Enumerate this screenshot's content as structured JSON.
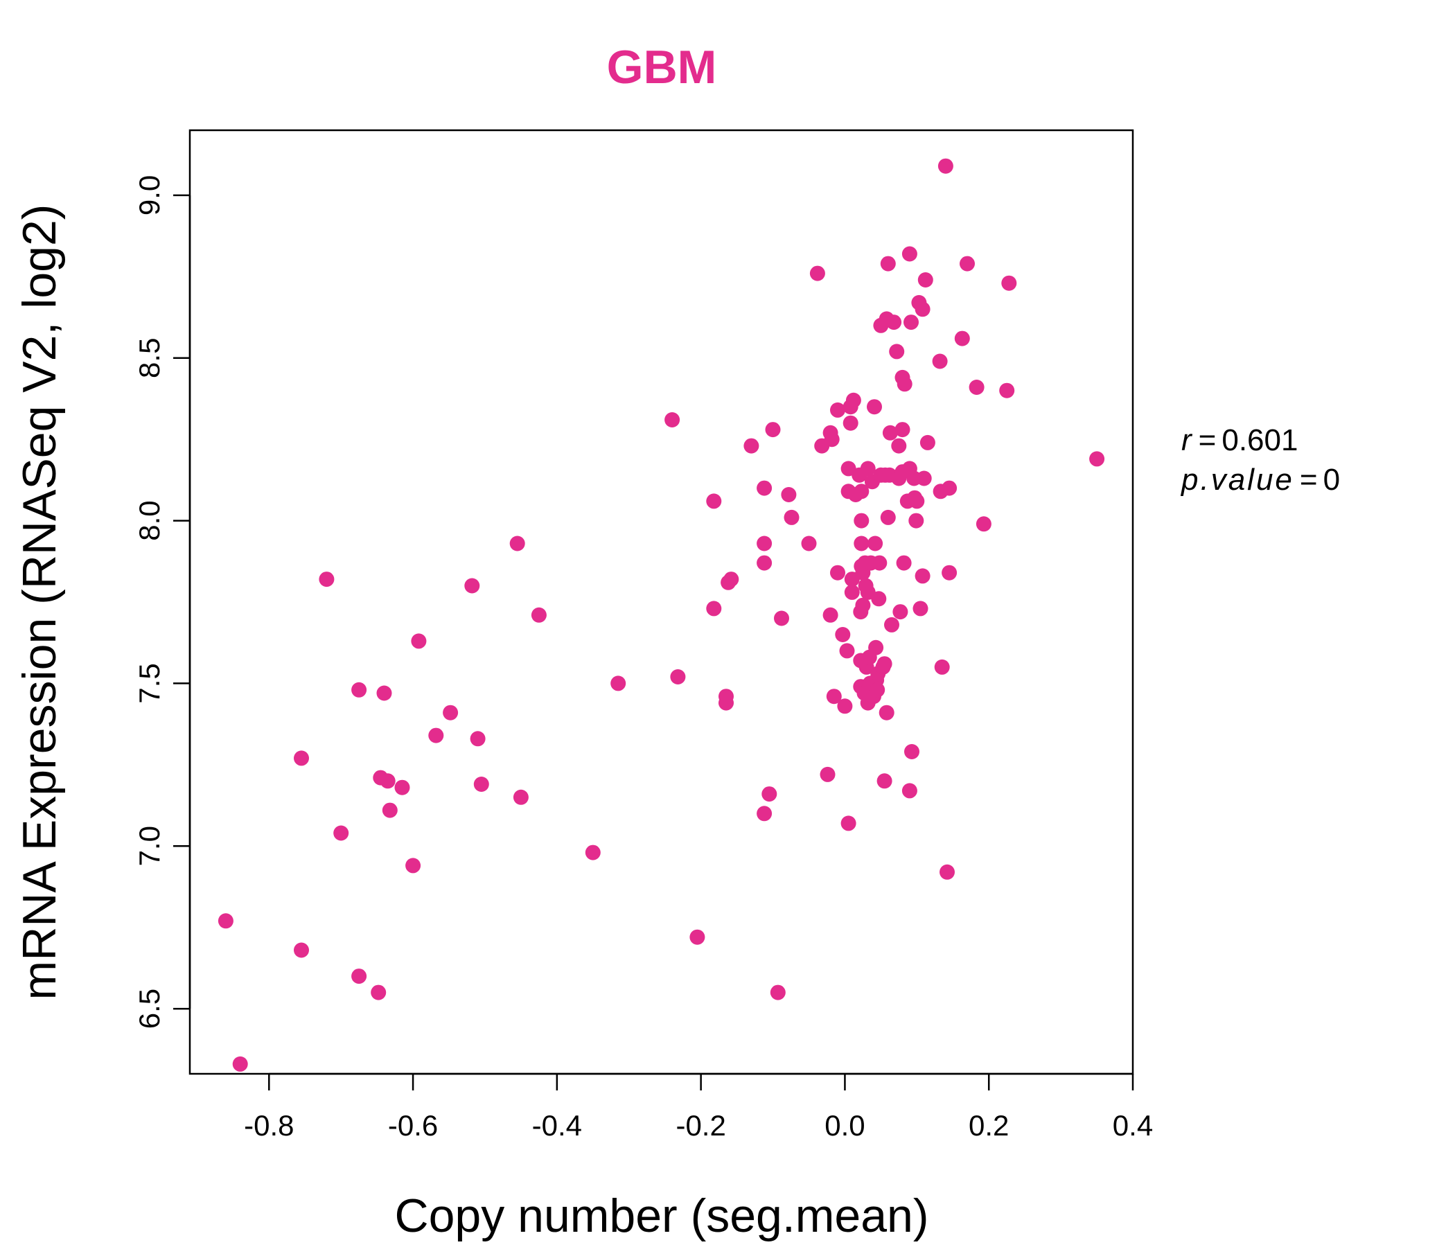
{
  "chart_data": {
    "type": "scatter",
    "title": "GBM",
    "xlabel": "Copy number (seg.mean)",
    "ylabel": "mRNA Expression (RNASeq V2, log2)",
    "xlim": [
      -0.91,
      0.4
    ],
    "ylim": [
      6.3,
      9.2
    ],
    "x_ticks": [
      -0.8,
      -0.6,
      -0.4,
      -0.2,
      0.0,
      0.2,
      0.4
    ],
    "x_tick_labels": [
      "-0.8",
      "-0.6",
      "-0.4",
      "-0.2",
      "0.0",
      "0.2",
      "0.4"
    ],
    "y_ticks": [
      6.5,
      7.0,
      7.5,
      8.0,
      8.5,
      9.0
    ],
    "y_tick_labels": [
      "6.5",
      "7.0",
      "7.5",
      "8.0",
      "8.5",
      "9.0"
    ],
    "grid": false,
    "color": "#E32C8D",
    "stats": {
      "r_label": "r",
      "r_value": "0.601",
      "p_label": "p.value",
      "p_value": "0"
    },
    "points": [
      [
        -0.86,
        6.77
      ],
      [
        -0.84,
        6.33
      ],
      [
        -0.755,
        7.27
      ],
      [
        -0.755,
        6.68
      ],
      [
        -0.72,
        7.82
      ],
      [
        -0.7,
        7.04
      ],
      [
        -0.675,
        7.48
      ],
      [
        -0.675,
        6.6
      ],
      [
        -0.648,
        6.55
      ],
      [
        -0.645,
        7.21
      ],
      [
        -0.64,
        7.47
      ],
      [
        -0.635,
        7.2
      ],
      [
        -0.632,
        7.11
      ],
      [
        -0.615,
        7.18
      ],
      [
        -0.6,
        6.94
      ],
      [
        -0.592,
        7.63
      ],
      [
        -0.568,
        7.34
      ],
      [
        -0.548,
        7.41
      ],
      [
        -0.518,
        7.8
      ],
      [
        -0.51,
        7.33
      ],
      [
        -0.505,
        7.19
      ],
      [
        -0.455,
        7.93
      ],
      [
        -0.45,
        7.15
      ],
      [
        -0.425,
        7.71
      ],
      [
        -0.35,
        6.98
      ],
      [
        -0.315,
        7.5
      ],
      [
        -0.24,
        8.31
      ],
      [
        -0.232,
        7.52
      ],
      [
        -0.205,
        6.72
      ],
      [
        -0.182,
        8.06
      ],
      [
        -0.182,
        7.73
      ],
      [
        -0.165,
        7.46
      ],
      [
        -0.165,
        7.44
      ],
      [
        -0.162,
        7.81
      ],
      [
        -0.158,
        7.82
      ],
      [
        -0.13,
        8.23
      ],
      [
        -0.112,
        8.1
      ],
      [
        -0.112,
        7.93
      ],
      [
        -0.112,
        7.87
      ],
      [
        -0.112,
        7.1
      ],
      [
        -0.105,
        7.16
      ],
      [
        -0.1,
        8.28
      ],
      [
        -0.093,
        6.55
      ],
      [
        -0.088,
        7.7
      ],
      [
        -0.078,
        8.08
      ],
      [
        -0.074,
        8.01
      ],
      [
        -0.05,
        7.93
      ],
      [
        -0.038,
        8.76
      ],
      [
        -0.032,
        8.23
      ],
      [
        -0.024,
        7.22
      ],
      [
        -0.02,
        8.27
      ],
      [
        -0.02,
        7.71
      ],
      [
        -0.018,
        8.25
      ],
      [
        -0.015,
        7.46
      ],
      [
        -0.01,
        8.34
      ],
      [
        -0.01,
        7.84
      ],
      [
        -0.003,
        7.65
      ],
      [
        0.0,
        7.43
      ],
      [
        0.003,
        7.6
      ],
      [
        0.005,
        7.07
      ],
      [
        0.005,
        8.16
      ],
      [
        0.005,
        8.09
      ],
      [
        0.008,
        8.35
      ],
      [
        0.008,
        8.3
      ],
      [
        0.01,
        7.78
      ],
      [
        0.01,
        7.82
      ],
      [
        0.012,
        8.37
      ],
      [
        0.015,
        8.08
      ],
      [
        0.02,
        8.14
      ],
      [
        0.022,
        7.72
      ],
      [
        0.022,
        7.57
      ],
      [
        0.022,
        7.49
      ],
      [
        0.023,
        8.09
      ],
      [
        0.023,
        7.93
      ],
      [
        0.023,
        7.86
      ],
      [
        0.023,
        8.0
      ],
      [
        0.025,
        7.84
      ],
      [
        0.025,
        7.74
      ],
      [
        0.027,
        7.47
      ],
      [
        0.028,
        7.87
      ],
      [
        0.029,
        7.8
      ],
      [
        0.03,
        7.55
      ],
      [
        0.032,
        8.16
      ],
      [
        0.032,
        7.78
      ],
      [
        0.032,
        7.44
      ],
      [
        0.034,
        7.58
      ],
      [
        0.035,
        7.5
      ],
      [
        0.036,
        7.87
      ],
      [
        0.038,
        8.12
      ],
      [
        0.04,
        7.46
      ],
      [
        0.041,
        8.35
      ],
      [
        0.042,
        7.93
      ],
      [
        0.043,
        7.61
      ],
      [
        0.044,
        7.51
      ],
      [
        0.045,
        7.48
      ],
      [
        0.046,
        7.53
      ],
      [
        0.047,
        7.76
      ],
      [
        0.048,
        7.87
      ],
      [
        0.05,
        8.14
      ],
      [
        0.05,
        8.6
      ],
      [
        0.053,
        7.55
      ],
      [
        0.055,
        7.2
      ],
      [
        0.055,
        7.56
      ],
      [
        0.056,
        8.14
      ],
      [
        0.058,
        8.62
      ],
      [
        0.058,
        7.41
      ],
      [
        0.06,
        8.79
      ],
      [
        0.06,
        8.01
      ],
      [
        0.062,
        8.14
      ],
      [
        0.063,
        8.27
      ],
      [
        0.065,
        7.68
      ],
      [
        0.068,
        8.61
      ],
      [
        0.072,
        8.52
      ],
      [
        0.075,
        8.13
      ],
      [
        0.075,
        8.23
      ],
      [
        0.077,
        7.72
      ],
      [
        0.08,
        8.28
      ],
      [
        0.08,
        8.44
      ],
      [
        0.08,
        8.15
      ],
      [
        0.082,
        7.87
      ],
      [
        0.083,
        8.42
      ],
      [
        0.087,
        8.06
      ],
      [
        0.09,
        8.82
      ],
      [
        0.09,
        7.17
      ],
      [
        0.09,
        8.16
      ],
      [
        0.092,
        8.61
      ],
      [
        0.093,
        7.29
      ],
      [
        0.096,
        8.13
      ],
      [
        0.097,
        8.07
      ],
      [
        0.099,
        8.0
      ],
      [
        0.1,
        8.06
      ],
      [
        0.103,
        8.67
      ],
      [
        0.105,
        7.73
      ],
      [
        0.108,
        7.83
      ],
      [
        0.108,
        8.65
      ],
      [
        0.11,
        8.13
      ],
      [
        0.112,
        8.74
      ],
      [
        0.115,
        8.24
      ],
      [
        0.132,
        8.49
      ],
      [
        0.133,
        8.09
      ],
      [
        0.135,
        7.55
      ],
      [
        0.14,
        9.09
      ],
      [
        0.142,
        6.92
      ],
      [
        0.145,
        8.1
      ],
      [
        0.145,
        7.84
      ],
      [
        0.163,
        8.56
      ],
      [
        0.17,
        8.79
      ],
      [
        0.183,
        8.41
      ],
      [
        0.193,
        7.99
      ],
      [
        0.225,
        8.4
      ],
      [
        0.228,
        8.73
      ],
      [
        0.35,
        8.19
      ]
    ]
  }
}
